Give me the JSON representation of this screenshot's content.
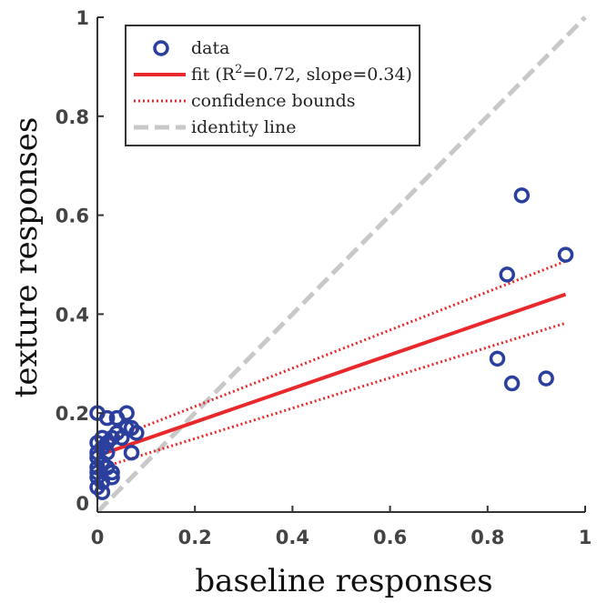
{
  "chart_data": {
    "type": "scatter",
    "xlabel": "baseline responses",
    "ylabel": "texture responses",
    "xlim": [
      0,
      1
    ],
    "ylim": [
      0,
      1
    ],
    "x_ticks": [
      "0",
      "0.2",
      "0.4",
      "0.6",
      "0.8",
      "1"
    ],
    "y_ticks": [
      "0",
      "0.2",
      "0.4",
      "0.6",
      "0.8",
      "1"
    ],
    "grid": false,
    "legend_position": "top-left",
    "legend": {
      "data": "data",
      "fit_prefix": "fit (R",
      "fit_sup": "2",
      "fit_suffix": "=0.72, slope=0.34)",
      "bounds": "confidence bounds",
      "identity": "identity line"
    },
    "colors": {
      "data": "#2b3f9e",
      "fit": "#e8282b",
      "bounds": "#e8282b",
      "identity": "#c8c8c8"
    },
    "scatter": [
      [
        0.0,
        0.2
      ],
      [
        0.02,
        0.19
      ],
      [
        0.04,
        0.19
      ],
      [
        0.06,
        0.2
      ],
      [
        0.06,
        0.17
      ],
      [
        0.07,
        0.17
      ],
      [
        0.08,
        0.16
      ],
      [
        0.04,
        0.16
      ],
      [
        0.05,
        0.15
      ],
      [
        0.03,
        0.15
      ],
      [
        0.01,
        0.15
      ],
      [
        0.02,
        0.14
      ],
      [
        0.0,
        0.14
      ],
      [
        0.01,
        0.13
      ],
      [
        0.0,
        0.12
      ],
      [
        0.02,
        0.12
      ],
      [
        0.0,
        0.11
      ],
      [
        0.01,
        0.1
      ],
      [
        0.0,
        0.09
      ],
      [
        0.02,
        0.09
      ],
      [
        0.0,
        0.08
      ],
      [
        0.03,
        0.08
      ],
      [
        0.0,
        0.07
      ],
      [
        0.01,
        0.06
      ],
      [
        0.03,
        0.07
      ],
      [
        0.0,
        0.05
      ],
      [
        0.01,
        0.04
      ],
      [
        0.07,
        0.12
      ],
      [
        0.82,
        0.31
      ],
      [
        0.84,
        0.48
      ],
      [
        0.85,
        0.26
      ],
      [
        0.87,
        0.64
      ],
      [
        0.92,
        0.27
      ],
      [
        0.96,
        0.52
      ]
    ],
    "fit_line": {
      "x": [
        0,
        0.96
      ],
      "y": [
        0.114,
        0.44
      ]
    },
    "bounds_upper": {
      "x": [
        0,
        0.96
      ],
      "y": [
        0.136,
        0.507
      ]
    },
    "bounds_lower": {
      "x": [
        0,
        0.96
      ],
      "y": [
        0.087,
        0.382
      ]
    },
    "identity_line": {
      "x": [
        0,
        1
      ],
      "y": [
        0,
        1
      ]
    }
  }
}
